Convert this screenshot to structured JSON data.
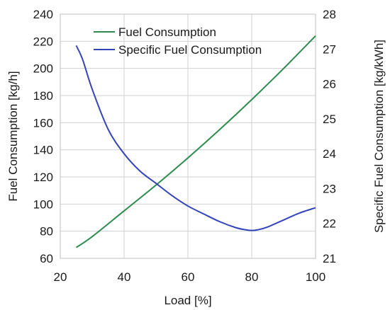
{
  "chart_data": {
    "type": "line",
    "xlabel": "Load [%]",
    "ylabel": "Fuel Consumption [kg/h]",
    "y2label": "Specific Fuel Consumption [kg/kWh]",
    "xlim": [
      20,
      100
    ],
    "ylim": [
      60,
      240
    ],
    "y2lim": [
      21,
      28
    ],
    "xticks": [
      "20",
      "40",
      "60",
      "80",
      "100"
    ],
    "yticks": [
      "60",
      "80",
      "100",
      "120",
      "140",
      "160",
      "180",
      "200",
      "220",
      "240"
    ],
    "y2ticks": [
      "21",
      "22",
      "23",
      "24",
      "25",
      "26",
      "27",
      "28"
    ],
    "grid": true,
    "legend": "top",
    "series": [
      {
        "name": "Fuel Consumption",
        "axis": "left",
        "color": "#2e8b4e",
        "x": [
          25,
          30,
          40,
          50,
          60,
          70,
          80,
          90,
          100
        ],
        "y": [
          68,
          76,
          95,
          114,
          134,
          155,
          177,
          200,
          224
        ]
      },
      {
        "name": "Specific Fuel Consumption",
        "axis": "right",
        "color": "#3344bb",
        "x": [
          25,
          27,
          30,
          35,
          40,
          45,
          50,
          55,
          60,
          65,
          70,
          75,
          78,
          80,
          82,
          85,
          90,
          95,
          100
        ],
        "y": [
          27.1,
          26.7,
          25.85,
          24.7,
          24.0,
          23.5,
          23.15,
          22.8,
          22.5,
          22.27,
          22.05,
          21.88,
          21.82,
          21.8,
          21.82,
          21.9,
          22.1,
          22.3,
          22.45
        ]
      }
    ]
  }
}
